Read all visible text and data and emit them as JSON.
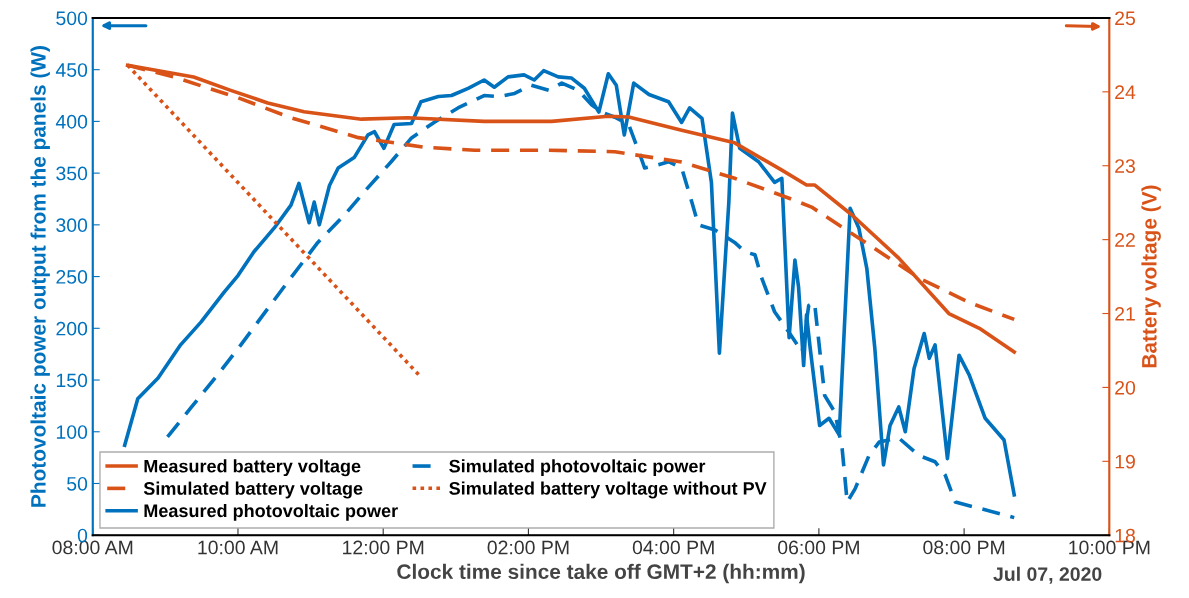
{
  "chart_data": {
    "type": "line",
    "xlabel": "Clock time since take off GMT+2 (hh:mm)",
    "ylabel": "Photovoltaic power output from the panels (W)",
    "y2label": "Battery voltage (V)",
    "annotations": [
      "Jul 07, 2020"
    ],
    "xlim": [
      8,
      22
    ],
    "xticks": [
      {
        "value": 8,
        "label": "08:00 AM"
      },
      {
        "value": 10,
        "label": "10:00 AM"
      },
      {
        "value": 12,
        "label": "12:00 PM"
      },
      {
        "value": 14,
        "label": "02:00 PM"
      },
      {
        "value": 16,
        "label": "04:00 PM"
      },
      {
        "value": 18,
        "label": "06:00 PM"
      },
      {
        "value": 20,
        "label": "08:00 PM"
      },
      {
        "value": 22,
        "label": "10:00 PM"
      }
    ],
    "ylim": [
      0,
      500
    ],
    "yticks": [
      0,
      50,
      100,
      150,
      200,
      250,
      300,
      350,
      400,
      450,
      500
    ],
    "y2lim": [
      18,
      25
    ],
    "y2ticks": [
      18,
      19,
      20,
      21,
      22,
      23,
      24,
      25
    ],
    "grid": false,
    "legend": "bottom left",
    "marker": "none",
    "series": [
      {
        "name": "Measured battery voltage",
        "color": "#d95319",
        "axis": "y2",
        "line_style": "solid",
        "x": [
          8.48,
          9.39,
          9.9,
          10.41,
          10.91,
          11.7,
          12.34,
          13.39,
          13.81,
          14.32,
          15.1,
          15.38,
          16.11,
          16.84,
          17.49,
          17.83,
          17.94,
          18.46,
          19.1,
          19.79,
          20.21,
          20.69
        ],
        "values": [
          24.36,
          24.2,
          24.02,
          23.85,
          23.73,
          23.63,
          23.65,
          23.6,
          23.6,
          23.6,
          23.67,
          23.66,
          23.48,
          23.31,
          22.94,
          22.74,
          22.74,
          22.33,
          21.75,
          21.0,
          20.8,
          20.48
        ]
      },
      {
        "name": "Simulated battery voltage",
        "color": "#d95319",
        "axis": "y2",
        "line_style": "dashed",
        "x": [
          8.48,
          9.12,
          10.0,
          10.73,
          11.66,
          12.57,
          13.26,
          14.28,
          15.19,
          16.11,
          16.84,
          17.59,
          17.9,
          18.69,
          19.38,
          20.07,
          20.69
        ],
        "values": [
          24.36,
          24.2,
          23.92,
          23.65,
          23.38,
          23.25,
          23.21,
          23.21,
          23.19,
          23.05,
          22.83,
          22.56,
          22.44,
          21.93,
          21.48,
          21.15,
          20.92
        ]
      },
      {
        "name": "Measured photovoltaic power",
        "color": "#0072bd",
        "axis": "y",
        "line_style": "solid",
        "x": [
          8.44,
          8.62,
          8.9,
          9.21,
          9.49,
          9.81,
          10.0,
          10.22,
          10.5,
          10.73,
          10.84,
          10.98,
          11.05,
          11.12,
          11.26,
          11.38,
          11.6,
          11.79,
          11.88,
          12.01,
          12.15,
          12.39,
          12.52,
          12.76,
          12.94,
          13.17,
          13.39,
          13.53,
          13.72,
          13.94,
          14.08,
          14.21,
          14.41,
          14.59,
          14.77,
          14.97,
          15.1,
          15.21,
          15.32,
          15.45,
          15.66,
          15.93,
          16.11,
          16.22,
          16.39,
          16.52,
          16.63,
          16.76,
          16.81,
          16.91,
          17.17,
          17.39,
          17.49,
          17.59,
          17.67,
          17.72,
          17.79,
          17.83,
          17.88,
          18.01,
          18.14,
          18.28,
          18.43,
          18.55,
          18.66,
          18.77,
          18.89,
          18.98,
          19.1,
          19.19,
          19.31,
          19.45,
          19.52,
          19.6,
          19.77,
          19.93,
          20.07,
          20.29,
          20.55,
          20.69
        ],
        "values": [
          87,
          132,
          152,
          184,
          206,
          235,
          251,
          274,
          297,
          319,
          340,
          302,
          322,
          300,
          338,
          355,
          365,
          387,
          390,
          374,
          397,
          398,
          419,
          424,
          425,
          432,
          440,
          433,
          443,
          445,
          440,
          449,
          443,
          442,
          432,
          409,
          446,
          435,
          387,
          437,
          426,
          419,
          399,
          413,
          403,
          341,
          176,
          322,
          408,
          374,
          361,
          341,
          345,
          191,
          266,
          240,
          164,
          213,
          181,
          106,
          113,
          97,
          316,
          297,
          258,
          181,
          68,
          106,
          124,
          100,
          161,
          195,
          171,
          184,
          74,
          174,
          155,
          113,
          92,
          39
        ]
      },
      {
        "name": "Simulated photovoltaic power",
        "color": "#0072bd",
        "axis": "y",
        "line_style": "dashed",
        "x": [
          9.03,
          9.35,
          9.72,
          10.04,
          10.41,
          10.73,
          11.1,
          11.46,
          11.79,
          12.11,
          12.39,
          12.7,
          13.03,
          13.39,
          13.59,
          13.81,
          14.04,
          14.28,
          14.46,
          14.69,
          14.87,
          15.01,
          15.19,
          15.38,
          15.53,
          15.6,
          15.79,
          15.93,
          16.11,
          16.25,
          16.34,
          16.57,
          16.84,
          16.98,
          17.12,
          17.21,
          17.39,
          17.59,
          17.77,
          17.86,
          17.94,
          18.08,
          18.22,
          18.32,
          18.39,
          18.5,
          18.69,
          18.83,
          19.1,
          19.38,
          19.6,
          19.74,
          19.88,
          20.21,
          20.69
        ],
        "values": [
          95,
          123,
          155,
          184,
          219,
          249,
          283,
          309,
          336,
          361,
          384,
          399,
          413,
          425,
          424,
          427,
          435,
          430,
          437,
          430,
          416,
          409,
          404,
          397,
          369,
          355,
          358,
          361,
          355,
          322,
          300,
          295,
          283,
          274,
          271,
          249,
          216,
          196,
          177,
          222,
          225,
          135,
          119,
          84,
          32,
          45,
          77,
          90,
          94,
          77,
          71,
          58,
          32,
          26,
          17
        ]
      },
      {
        "name": "Simulated battery voltage without PV",
        "color": "#d95319",
        "axis": "y2",
        "line_style": "dotted",
        "x": [
          8.48,
          12.52
        ],
        "values": [
          24.36,
          20.14
        ]
      }
    ]
  }
}
